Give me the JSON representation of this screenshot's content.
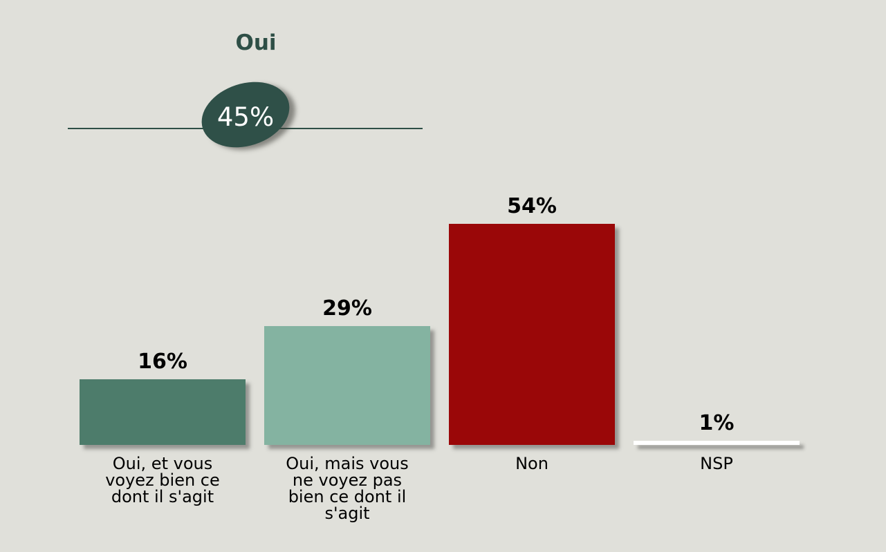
{
  "header": {
    "group_label": "Oui",
    "group_total": "45%",
    "accent_color": "#2e4f46"
  },
  "chart_data": {
    "type": "bar",
    "title": "",
    "xlabel": "",
    "ylabel": "",
    "unit": "percent",
    "ylim": [
      0,
      60
    ],
    "grid": false,
    "legend": "none",
    "categories": [
      "Oui, et vous voyez bien ce dont il s'agit",
      "Oui, mais vous ne voyez pas bien ce dont il s'agit",
      "Non",
      "NSP"
    ],
    "category_display": [
      "Oui, et vous\nvoyez bien ce\ndont il s'agit",
      "Oui, mais vous\nne voyez pas\nbien ce dont il\ns'agit",
      "Non",
      "NSP"
    ],
    "values": [
      16,
      29,
      54,
      1
    ],
    "value_labels": [
      "16%",
      "29%",
      "54%",
      "1%"
    ],
    "bar_colors": [
      "#4d7c6b",
      "#84b3a1",
      "#9a0708",
      "#ffffff"
    ],
    "annotation": {
      "label": "Oui",
      "value": "45%",
      "shape": "ellipse",
      "color": "#2f5048",
      "text_color": "#ffffff",
      "note": "sum of the two Oui bars (16% + 29% = 45%) bracketed by a line"
    },
    "background_color": "#e0e0da"
  }
}
